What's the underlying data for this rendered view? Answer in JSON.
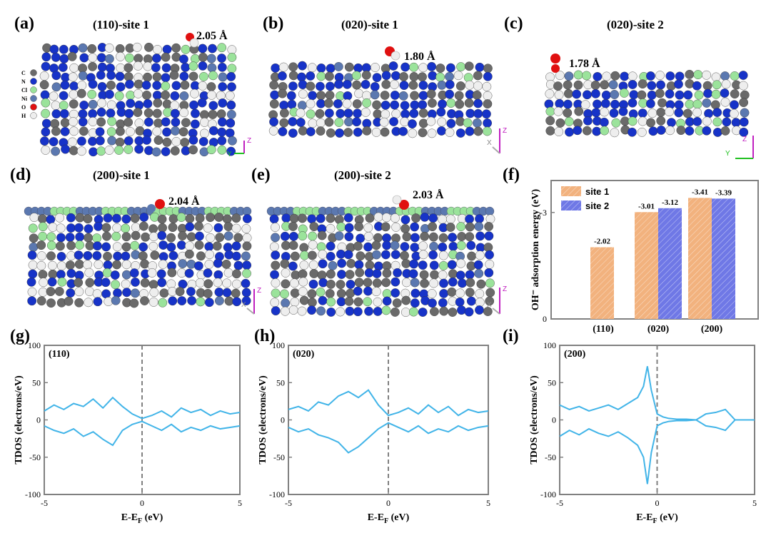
{
  "panel_labels": [
    "(a)",
    "(b)",
    "(c)",
    "(d)",
    "(e)",
    "(f)",
    "(g)",
    "(h)",
    "(i)"
  ],
  "structures": [
    {
      "title": "(110)-site 1",
      "bond": "2.05 Å"
    },
    {
      "title": "(020)-site 1",
      "bond": "1.80 Å"
    },
    {
      "title": "(020)-site 2",
      "bond": "1.78 Å"
    },
    {
      "title": "(200)-site 1",
      "bond": "2.04 Å"
    },
    {
      "title": "(200)-site 2",
      "bond": "2.03 Å"
    }
  ],
  "element_legend": [
    {
      "symbol": "C",
      "color": "#6a6a6a"
    },
    {
      "symbol": "N",
      "color": "#1733c8"
    },
    {
      "symbol": "Cl",
      "color": "#9be39b"
    },
    {
      "symbol": "Ni",
      "color": "#5b78b0"
    },
    {
      "symbol": "O",
      "color": "#e01010"
    },
    {
      "symbol": "H",
      "color": "#eeeeee"
    }
  ],
  "axis_glyphs": {
    "z": "Z",
    "y": "Y",
    "x": "X"
  },
  "chart_data": [
    {
      "type": "bar",
      "panel": "(f)",
      "ylabel": "OH⁻ adsorption energy (eV)",
      "categories": [
        "(110)",
        "(020)",
        "(200)"
      ],
      "yticks": [
        "0",
        "-3"
      ],
      "ylim": [
        0,
        -3.9
      ],
      "series": [
        {
          "name": "site 1",
          "color": "#f2b27e",
          "values": [
            -2.02,
            -3.01,
            -3.41
          ],
          "labels": [
            "-2.02",
            "-3.01",
            "-3.41"
          ]
        },
        {
          "name": "site 2",
          "color": "#6f78e6",
          "values": [
            null,
            -3.12,
            -3.39
          ],
          "labels": [
            "",
            "-3.12",
            "-3.39"
          ]
        }
      ],
      "legend": "top-left"
    },
    {
      "type": "line",
      "panel": "(g)",
      "annotation": "(110)",
      "xlabel": "E-E_F (eV)",
      "ylabel": "TDOS (electrons/eV)",
      "xlim": [
        -5,
        5
      ],
      "ylim": [
        -100,
        100
      ],
      "xticks": [
        "-5",
        "0",
        "5"
      ],
      "yticks": [
        "100",
        "50",
        "0",
        "-50",
        "-100"
      ],
      "series": [
        {
          "name": "up",
          "x": [
            -5,
            -4.5,
            -4,
            -3.5,
            -3,
            -2.5,
            -2,
            -1.5,
            -1,
            -0.5,
            0,
            0.5,
            1,
            1.5,
            2,
            2.5,
            3,
            3.5,
            4,
            4.5,
            5
          ],
          "y": [
            12,
            20,
            14,
            22,
            18,
            28,
            16,
            30,
            18,
            8,
            2,
            6,
            12,
            4,
            16,
            10,
            14,
            6,
            12,
            8,
            10
          ]
        },
        {
          "name": "down",
          "x": [
            -5,
            -4.5,
            -4,
            -3.5,
            -3,
            -2.5,
            -2,
            -1.5,
            -1,
            -0.5,
            0,
            0.5,
            1,
            1.5,
            2,
            2.5,
            3,
            3.5,
            4,
            4.5,
            5
          ],
          "y": [
            -8,
            -14,
            -18,
            -12,
            -22,
            -16,
            -26,
            -34,
            -14,
            -6,
            -2,
            -8,
            -14,
            -6,
            -16,
            -10,
            -14,
            -8,
            -12,
            -10,
            -8
          ]
        }
      ]
    },
    {
      "type": "line",
      "panel": "(h)",
      "annotation": "(020)",
      "xlabel": "E-E_F (eV)",
      "ylabel": "TDOS (electrons/eV)",
      "xlim": [
        -5,
        5
      ],
      "ylim": [
        -100,
        100
      ],
      "xticks": [
        "-5",
        "0",
        "5"
      ],
      "yticks": [
        "100",
        "50",
        "0",
        "-50",
        "-100"
      ],
      "series": [
        {
          "name": "up",
          "x": [
            -5,
            -4.5,
            -4,
            -3.5,
            -3,
            -2.5,
            -2,
            -1.5,
            -1,
            -0.5,
            0,
            0.5,
            1,
            1.5,
            2,
            2.5,
            3,
            3.5,
            4,
            4.5,
            5
          ],
          "y": [
            14,
            18,
            12,
            24,
            20,
            32,
            38,
            30,
            40,
            20,
            6,
            10,
            16,
            8,
            20,
            10,
            18,
            6,
            14,
            10,
            12
          ]
        },
        {
          "name": "down",
          "x": [
            -5,
            -4.5,
            -4,
            -3.5,
            -3,
            -2.5,
            -2,
            -1.5,
            -1,
            -0.5,
            0,
            0.5,
            1,
            1.5,
            2,
            2.5,
            3,
            3.5,
            4,
            4.5,
            5
          ],
          "y": [
            -10,
            -16,
            -12,
            -20,
            -24,
            -30,
            -44,
            -36,
            -24,
            -12,
            -4,
            -10,
            -16,
            -8,
            -18,
            -12,
            -16,
            -8,
            -14,
            -10,
            -8
          ]
        }
      ]
    },
    {
      "type": "line",
      "panel": "(i)",
      "annotation": "(200)",
      "xlabel": "E-E_F (eV)",
      "ylabel": "TDOS (electrons/eV)",
      "xlim": [
        -5,
        5
      ],
      "ylim": [
        -100,
        100
      ],
      "xticks": [
        "-5",
        "0",
        "5"
      ],
      "yticks": [
        "100",
        "50",
        "0",
        "-50",
        "-100"
      ],
      "series": [
        {
          "name": "up",
          "x": [
            -5,
            -4.5,
            -4,
            -3.5,
            -3,
            -2.5,
            -2,
            -1.5,
            -1,
            -0.7,
            -0.5,
            -0.3,
            0,
            0.3,
            0.6,
            1,
            1.5,
            2,
            2.5,
            3,
            3.5,
            4,
            4.5,
            5
          ],
          "y": [
            20,
            14,
            18,
            12,
            16,
            20,
            14,
            22,
            30,
            45,
            72,
            40,
            8,
            4,
            2,
            1,
            1,
            0,
            8,
            10,
            14,
            0,
            0,
            0
          ]
        },
        {
          "name": "down",
          "x": [
            -5,
            -4.5,
            -4,
            -3.5,
            -3,
            -2.5,
            -2,
            -1.5,
            -1,
            -0.7,
            -0.5,
            -0.3,
            0,
            0.3,
            0.6,
            1,
            1.5,
            2,
            2.5,
            3,
            3.5,
            4,
            4.5,
            5
          ],
          "y": [
            -22,
            -14,
            -20,
            -12,
            -18,
            -22,
            -16,
            -24,
            -34,
            -50,
            -86,
            -44,
            -8,
            -4,
            -2,
            -1,
            -1,
            0,
            -8,
            -10,
            -14,
            0,
            0,
            0
          ]
        }
      ]
    }
  ]
}
